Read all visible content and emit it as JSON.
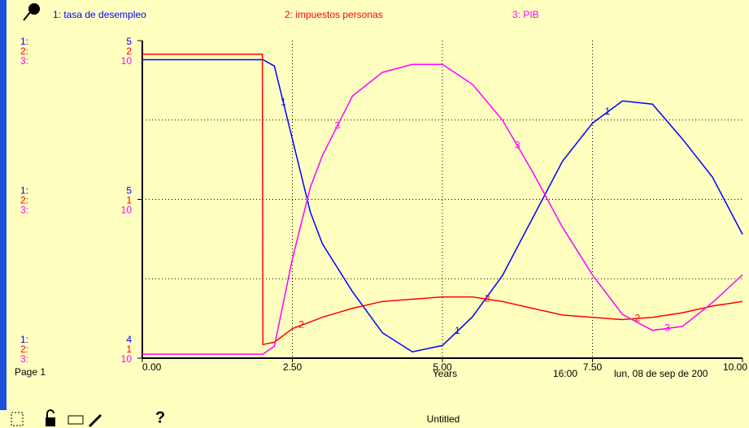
{
  "chart_data": {
    "type": "line",
    "x": [
      0,
      2,
      2.01,
      2.2,
      2.5,
      2.8,
      3,
      3.5,
      4,
      4.5,
      5,
      5.5,
      6,
      6.5,
      7,
      7.5,
      8,
      8.5,
      9,
      9.5,
      10
    ],
    "xlim": [
      0,
      10
    ],
    "xticks": [
      {
        "value": 0,
        "label": "0.00"
      },
      {
        "value": 2.5,
        "label": "2.50"
      },
      {
        "value": 5,
        "label": "5.00"
      },
      {
        "value": 7.5,
        "label": "7.50"
      },
      {
        "value": 10,
        "label": "10.00"
      }
    ],
    "xlabel": "Years",
    "grid": true,
    "series": [
      {
        "id": "1",
        "axis_tag": "1:",
        "legend": "1: tasa de desempleo",
        "color": "#0000ff",
        "ylim": [
          4,
          5
        ],
        "yticks": [
          {
            "value": 4,
            "label": "4"
          },
          {
            "value": 4.5,
            "label": "5"
          },
          {
            "value": 5,
            "label": "5"
          }
        ],
        "values": [
          4.94,
          4.94,
          4.94,
          4.92,
          4.69,
          4.46,
          4.36,
          4.21,
          4.08,
          4.02,
          4.04,
          4.13,
          4.26,
          4.44,
          4.62,
          4.74,
          4.81,
          4.8,
          4.69,
          4.57,
          4.39
        ]
      },
      {
        "id": "2",
        "axis_tag": "2:",
        "legend": "2: impuestos personas",
        "color": "#ff0000",
        "ylim": [
          0.6,
          2
        ],
        "yticks": [
          {
            "value": 0.6,
            "label": "1"
          },
          {
            "value": 1.3,
            "label": "1"
          },
          {
            "value": 2,
            "label": "2"
          }
        ],
        "values": [
          1.94,
          1.94,
          0.66,
          0.67,
          0.73,
          0.76,
          0.78,
          0.82,
          0.85,
          0.86,
          0.87,
          0.87,
          0.85,
          0.82,
          0.79,
          0.78,
          0.77,
          0.78,
          0.8,
          0.83,
          0.85
        ]
      },
      {
        "id": "3",
        "axis_tag": "3:",
        "legend": "3: PIB",
        "color": "#ff00ff",
        "ylim": [
          9.6,
          10.4
        ],
        "yticks": [
          {
            "value": 9.6,
            "label": "10"
          },
          {
            "value": 10,
            "label": "10"
          },
          {
            "value": 10.4,
            "label": "10"
          }
        ],
        "values": [
          9.61,
          9.61,
          9.61,
          9.63,
          9.85,
          10.03,
          10.11,
          10.26,
          10.32,
          10.34,
          10.34,
          10.29,
          10.2,
          10.07,
          9.93,
          9.81,
          9.71,
          9.67,
          9.68,
          9.74,
          9.81
        ]
      }
    ]
  },
  "status": {
    "page": "Page 1",
    "time": "16:00",
    "date": "lun, 08 de sep de 200",
    "file": "Untitled",
    "help": "?"
  }
}
